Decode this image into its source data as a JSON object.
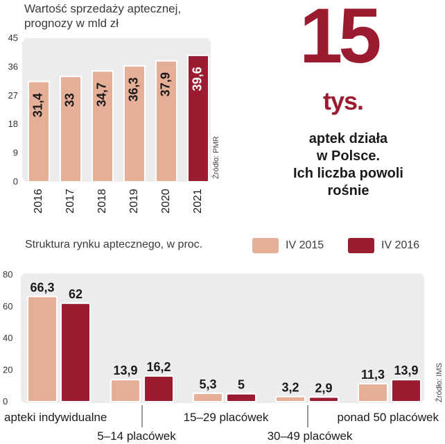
{
  "colors": {
    "iv2015": "#e5ae96",
    "iv2016": "#9b1b30",
    "panel": "#ececec",
    "text": "#1a1a1a"
  },
  "headline": {
    "number": "15",
    "unit": "tys.",
    "description_lines": [
      "aptek działa",
      "w Polsce.",
      "Ich liczba powoli",
      "rośnie"
    ]
  },
  "chart_data": [
    {
      "type": "bar",
      "title_lines": [
        "Wartość sprzedaży aptecznej,",
        "prognozy w mld zł"
      ],
      "categories": [
        "2016",
        "2017",
        "2018",
        "2019",
        "2020",
        "2021"
      ],
      "values": [
        31.4,
        33,
        34.7,
        36.3,
        37.9,
        39.6
      ],
      "value_labels": [
        "31,4",
        "33",
        "34,7",
        "36,3",
        "37,9",
        "39,6"
      ],
      "highlight_index": 5,
      "ylim": [
        0,
        45
      ],
      "yticks": [
        0,
        9,
        18,
        27,
        36,
        45
      ],
      "source": "Źródło: PMR"
    },
    {
      "type": "bar",
      "title": "Struktura rynku aptecznego, w proc.",
      "categories": [
        "apteki indywidualne",
        "5–14 placówek",
        "15–29 placówek",
        "30–49 placówek",
        "ponad 50 placówek"
      ],
      "series": [
        {
          "name": "IV 2015",
          "values": [
            66.3,
            13.9,
            5.3,
            3.2,
            11.3
          ],
          "labels": [
            "66,3",
            "13,9",
            "5,3",
            "3,2",
            "11,3"
          ]
        },
        {
          "name": "IV 2016",
          "values": [
            62,
            16.2,
            5,
            2.9,
            13.9
          ],
          "labels": [
            "62",
            "16,2",
            "5",
            "2,9",
            "13,9"
          ]
        }
      ],
      "ylim": [
        0,
        80
      ],
      "yticks": [
        0,
        20,
        40,
        60,
        80
      ],
      "source": "Źródło: IMS"
    }
  ]
}
